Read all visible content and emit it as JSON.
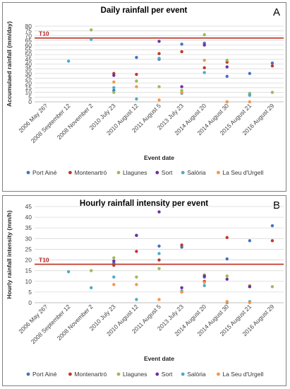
{
  "chart_data": [
    {
      "type": "scatter",
      "panel_letter": "A",
      "title": "Daily rainfall per event",
      "xlabel": "Event date",
      "ylabel": "Accumulaed rainfall (mm/day)",
      "ylim": [
        0,
        80
      ],
      "yticks": [
        0,
        5,
        10,
        15,
        20,
        25,
        30,
        35,
        40,
        45,
        50,
        55,
        60,
        65,
        70,
        75,
        80
      ],
      "categories": [
        "2006 May 26?",
        "2008 September 12",
        "2008 November 2",
        "2010 July 23",
        "2010 August 12",
        "2011 August 5",
        "2013 July 23",
        "2014 August 20",
        "2014 August 30",
        "2015 August 21",
        "2016 August 29"
      ],
      "threshold": {
        "label": "T10",
        "value": 67.5,
        "color": "#c0392b"
      },
      "grid": true,
      "legend_position": "bottom",
      "series": [
        {
          "name": "Port Ainé",
          "color": "#4472c4",
          "values": [
            null,
            null,
            null,
            12,
            47,
            45,
            61,
            62,
            27,
            30,
            41
          ]
        },
        {
          "name": "Montenartró",
          "color": "#c0392b",
          "values": [
            null,
            null,
            null,
            30,
            29,
            51,
            53,
            36,
            42,
            8,
            38
          ]
        },
        {
          "name": "Llagunes",
          "color": "#9bbb59",
          "values": [
            null,
            null,
            76,
            10,
            22,
            16,
            12,
            71,
            44,
            9,
            10
          ]
        },
        {
          "name": "Sort",
          "color": "#7030a0",
          "values": [
            null,
            null,
            null,
            28,
            null,
            64,
            16,
            60,
            37,
            null,
            null
          ]
        },
        {
          "name": "Salòria",
          "color": "#4bacc6",
          "values": [
            null,
            43,
            66,
            15,
            3,
            46,
            9,
            31,
            0,
            7,
            null
          ]
        },
        {
          "name": "La Seu d'Urgell",
          "color": "#f79646",
          "values": [
            null,
            null,
            null,
            21,
            16,
            2,
            10,
            44,
            0,
            0,
            null
          ]
        }
      ]
    },
    {
      "type": "scatter",
      "panel_letter": "B",
      "title": "Hourly rainfall intensity per event",
      "xlabel": "Event date",
      "ylabel": "Hourly rainfall intensity (mm/h)",
      "ylim": [
        0,
        45
      ],
      "yticks": [
        0,
        5,
        10,
        15,
        20,
        25,
        30,
        35,
        40,
        45
      ],
      "categories": [
        "2006 May 26?",
        "2008 September 12",
        "2008 November 2",
        "2010 July 23",
        "2010 August 12",
        "2011 August 5",
        "2013 July 23",
        "2014 August 20",
        "2014 August 30",
        "2015 August 21",
        "2016 August 29"
      ],
      "threshold": {
        "label": "T10",
        "value": 18,
        "color": "#c0392b"
      },
      "grid": true,
      "legend_position": "bottom",
      "series": [
        {
          "name": "Port Ainé",
          "color": "#4472c4",
          "values": [
            null,
            null,
            null,
            18.5,
            31.5,
            26.5,
            26,
            12,
            20.5,
            29,
            36
          ]
        },
        {
          "name": "Montenartró",
          "color": "#c0392b",
          "values": [
            null,
            null,
            null,
            17.5,
            24,
            20,
            27,
            10,
            30.5,
            7.5,
            29
          ]
        },
        {
          "name": "Llagunes",
          "color": "#9bbb59",
          "values": [
            null,
            null,
            15,
            21,
            12,
            16,
            5,
            13,
            12.5,
            8,
            7.5
          ]
        },
        {
          "name": "Sort",
          "color": "#7030a0",
          "values": [
            null,
            null,
            null,
            19.5,
            31.5,
            42.5,
            7,
            12.5,
            11,
            7.5,
            null
          ]
        },
        {
          "name": "Salòria",
          "color": "#4bacc6",
          "values": [
            null,
            14.5,
            7,
            12,
            1.5,
            23,
            5.5,
            8,
            0,
            0.5,
            null
          ]
        },
        {
          "name": "La Seu d'Urgell",
          "color": "#f79646",
          "values": [
            null,
            null,
            null,
            8.5,
            8.5,
            1.5,
            5,
            9.5,
            0.5,
            0,
            null
          ]
        }
      ]
    }
  ]
}
